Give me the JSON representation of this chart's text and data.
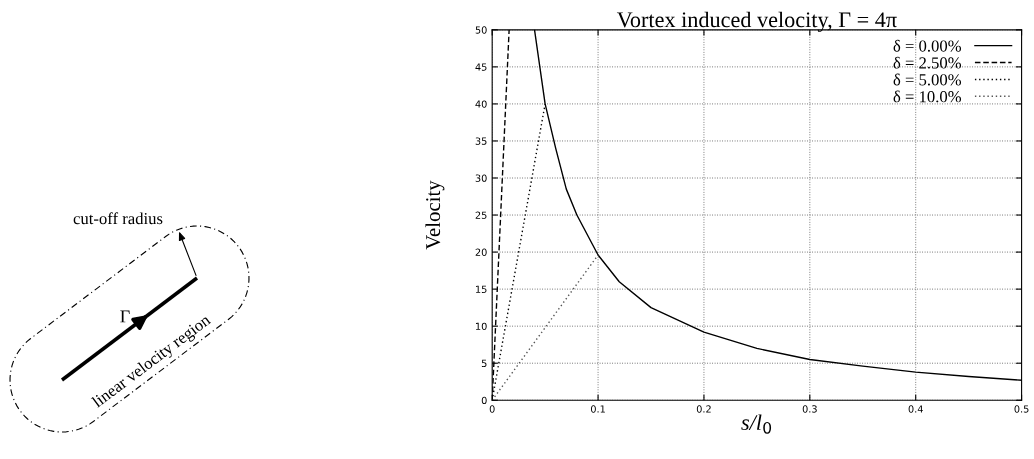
{
  "chart_data": [
    {
      "type": "other",
      "annotations": [
        "cut-off radius",
        "Γ",
        "linear velocity region"
      ]
    },
    {
      "type": "line",
      "title": "Vortex induced velocity, Γ = 4π",
      "xlabel": "s/l$_{0}$",
      "ylabel": "Velocity",
      "xlim": [
        0,
        0.5
      ],
      "ylim": [
        0,
        50
      ],
      "xticks": [
        0,
        0.1,
        0.2,
        0.3,
        0.4,
        0.5
      ],
      "yticks": [
        0,
        5,
        10,
        15,
        20,
        25,
        30,
        35,
        40,
        45,
        50
      ],
      "grid": true,
      "legend": "top right",
      "marker": "none",
      "series": [
        {
          "name": "δ = 0.00%",
          "color": "#000000",
          "line_style": "solid",
          "x": [
            0.04,
            0.05,
            0.06,
            0.07,
            0.08,
            0.1,
            0.12,
            0.15,
            0.2,
            0.25,
            0.3,
            0.35,
            0.4,
            0.45,
            0.5
          ],
          "values": [
            50,
            40,
            34,
            28.5,
            25,
            19.6,
            16,
            12.5,
            9.2,
            7,
            5.5,
            4.6,
            3.8,
            3.2,
            2.7
          ]
        },
        {
          "name": "δ = 2.50%",
          "color": "#000000",
          "line_style": "dashed",
          "x": [
            0,
            0.016
          ],
          "values": [
            0,
            50
          ]
        },
        {
          "name": "δ = 5.00%",
          "color": "#000000",
          "line_style": "dotted",
          "x": [
            0,
            0.05
          ],
          "values": [
            0,
            40
          ]
        },
        {
          "name": "δ = 10.0%",
          "color": "#555555",
          "line_style": "dotted",
          "x": [
            0,
            0.1
          ],
          "values": [
            0,
            19.6
          ]
        }
      ]
    }
  ]
}
